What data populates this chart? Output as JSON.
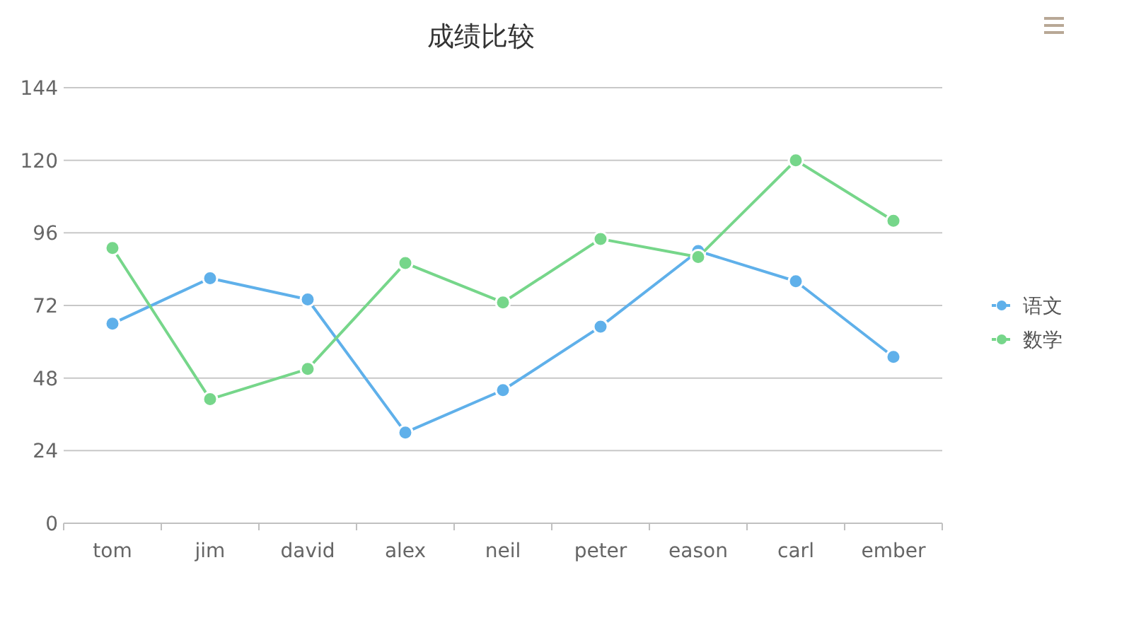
{
  "chart_data": {
    "type": "line",
    "title": "成绩比较",
    "categories": [
      "tom",
      "jim",
      "david",
      "alex",
      "neil",
      "peter",
      "eason",
      "carl",
      "ember"
    ],
    "series": [
      {
        "name": "语文",
        "color": "#5fb0ea",
        "values": [
          66,
          81,
          74,
          30,
          44,
          65,
          90,
          80,
          55
        ]
      },
      {
        "name": "数学",
        "color": "#76d68a",
        "values": [
          91,
          41,
          51,
          86,
          73,
          94,
          88,
          120,
          100
        ]
      }
    ],
    "ylim": [
      0,
      144
    ],
    "yticks": [
      0,
      24,
      48,
      72,
      96,
      120,
      144
    ],
    "grid": "y",
    "legend": "right",
    "marker": "circle"
  }
}
